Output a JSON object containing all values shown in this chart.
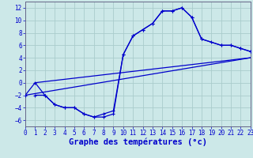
{
  "xlabel": "Graphe des températures (°c)",
  "background_color": "#cce8e8",
  "grid_color": "#aacccc",
  "line_color": "#0000cc",
  "xlim": [
    0,
    23
  ],
  "ylim": [
    -7,
    13
  ],
  "xticks": [
    0,
    1,
    2,
    3,
    4,
    5,
    6,
    7,
    8,
    9,
    10,
    11,
    12,
    13,
    14,
    15,
    16,
    17,
    18,
    19,
    20,
    21,
    22,
    23
  ],
  "yticks": [
    -6,
    -4,
    -2,
    0,
    2,
    4,
    6,
    8,
    10,
    12
  ],
  "curve1_x": [
    1,
    2,
    3,
    4,
    5,
    6,
    7,
    8,
    9,
    10,
    11,
    12,
    13,
    14,
    15,
    16,
    17,
    18,
    20,
    21,
    22,
    23
  ],
  "curve1_y": [
    -2,
    -2,
    -3.5,
    -4,
    -4,
    -5,
    -5.5,
    -5,
    -4.5,
    4.5,
    7.5,
    8.5,
    9.5,
    11.5,
    11.5,
    12,
    10.5,
    7,
    6,
    6,
    5.5,
    5
  ],
  "curve2_x": [
    0,
    1,
    2,
    3,
    4,
    5,
    6,
    7,
    8,
    9,
    10,
    11,
    12,
    13,
    14,
    15,
    16,
    17,
    18,
    19,
    20,
    21,
    22,
    23
  ],
  "curve2_y": [
    -2,
    0,
    -2,
    -3.5,
    -4,
    -4,
    -5,
    -5.5,
    -5.5,
    -5,
    4.5,
    7.5,
    8.5,
    9.5,
    11.5,
    11.5,
    12,
    10.5,
    7,
    6.5,
    6,
    6,
    5.5,
    5
  ],
  "line1_x": [
    0,
    23
  ],
  "line1_y": [
    -2,
    4
  ],
  "line2_x": [
    1,
    23
  ],
  "line2_y": [
    0,
    4
  ],
  "tick_fontsize": 5.5,
  "label_fontsize": 7.5
}
